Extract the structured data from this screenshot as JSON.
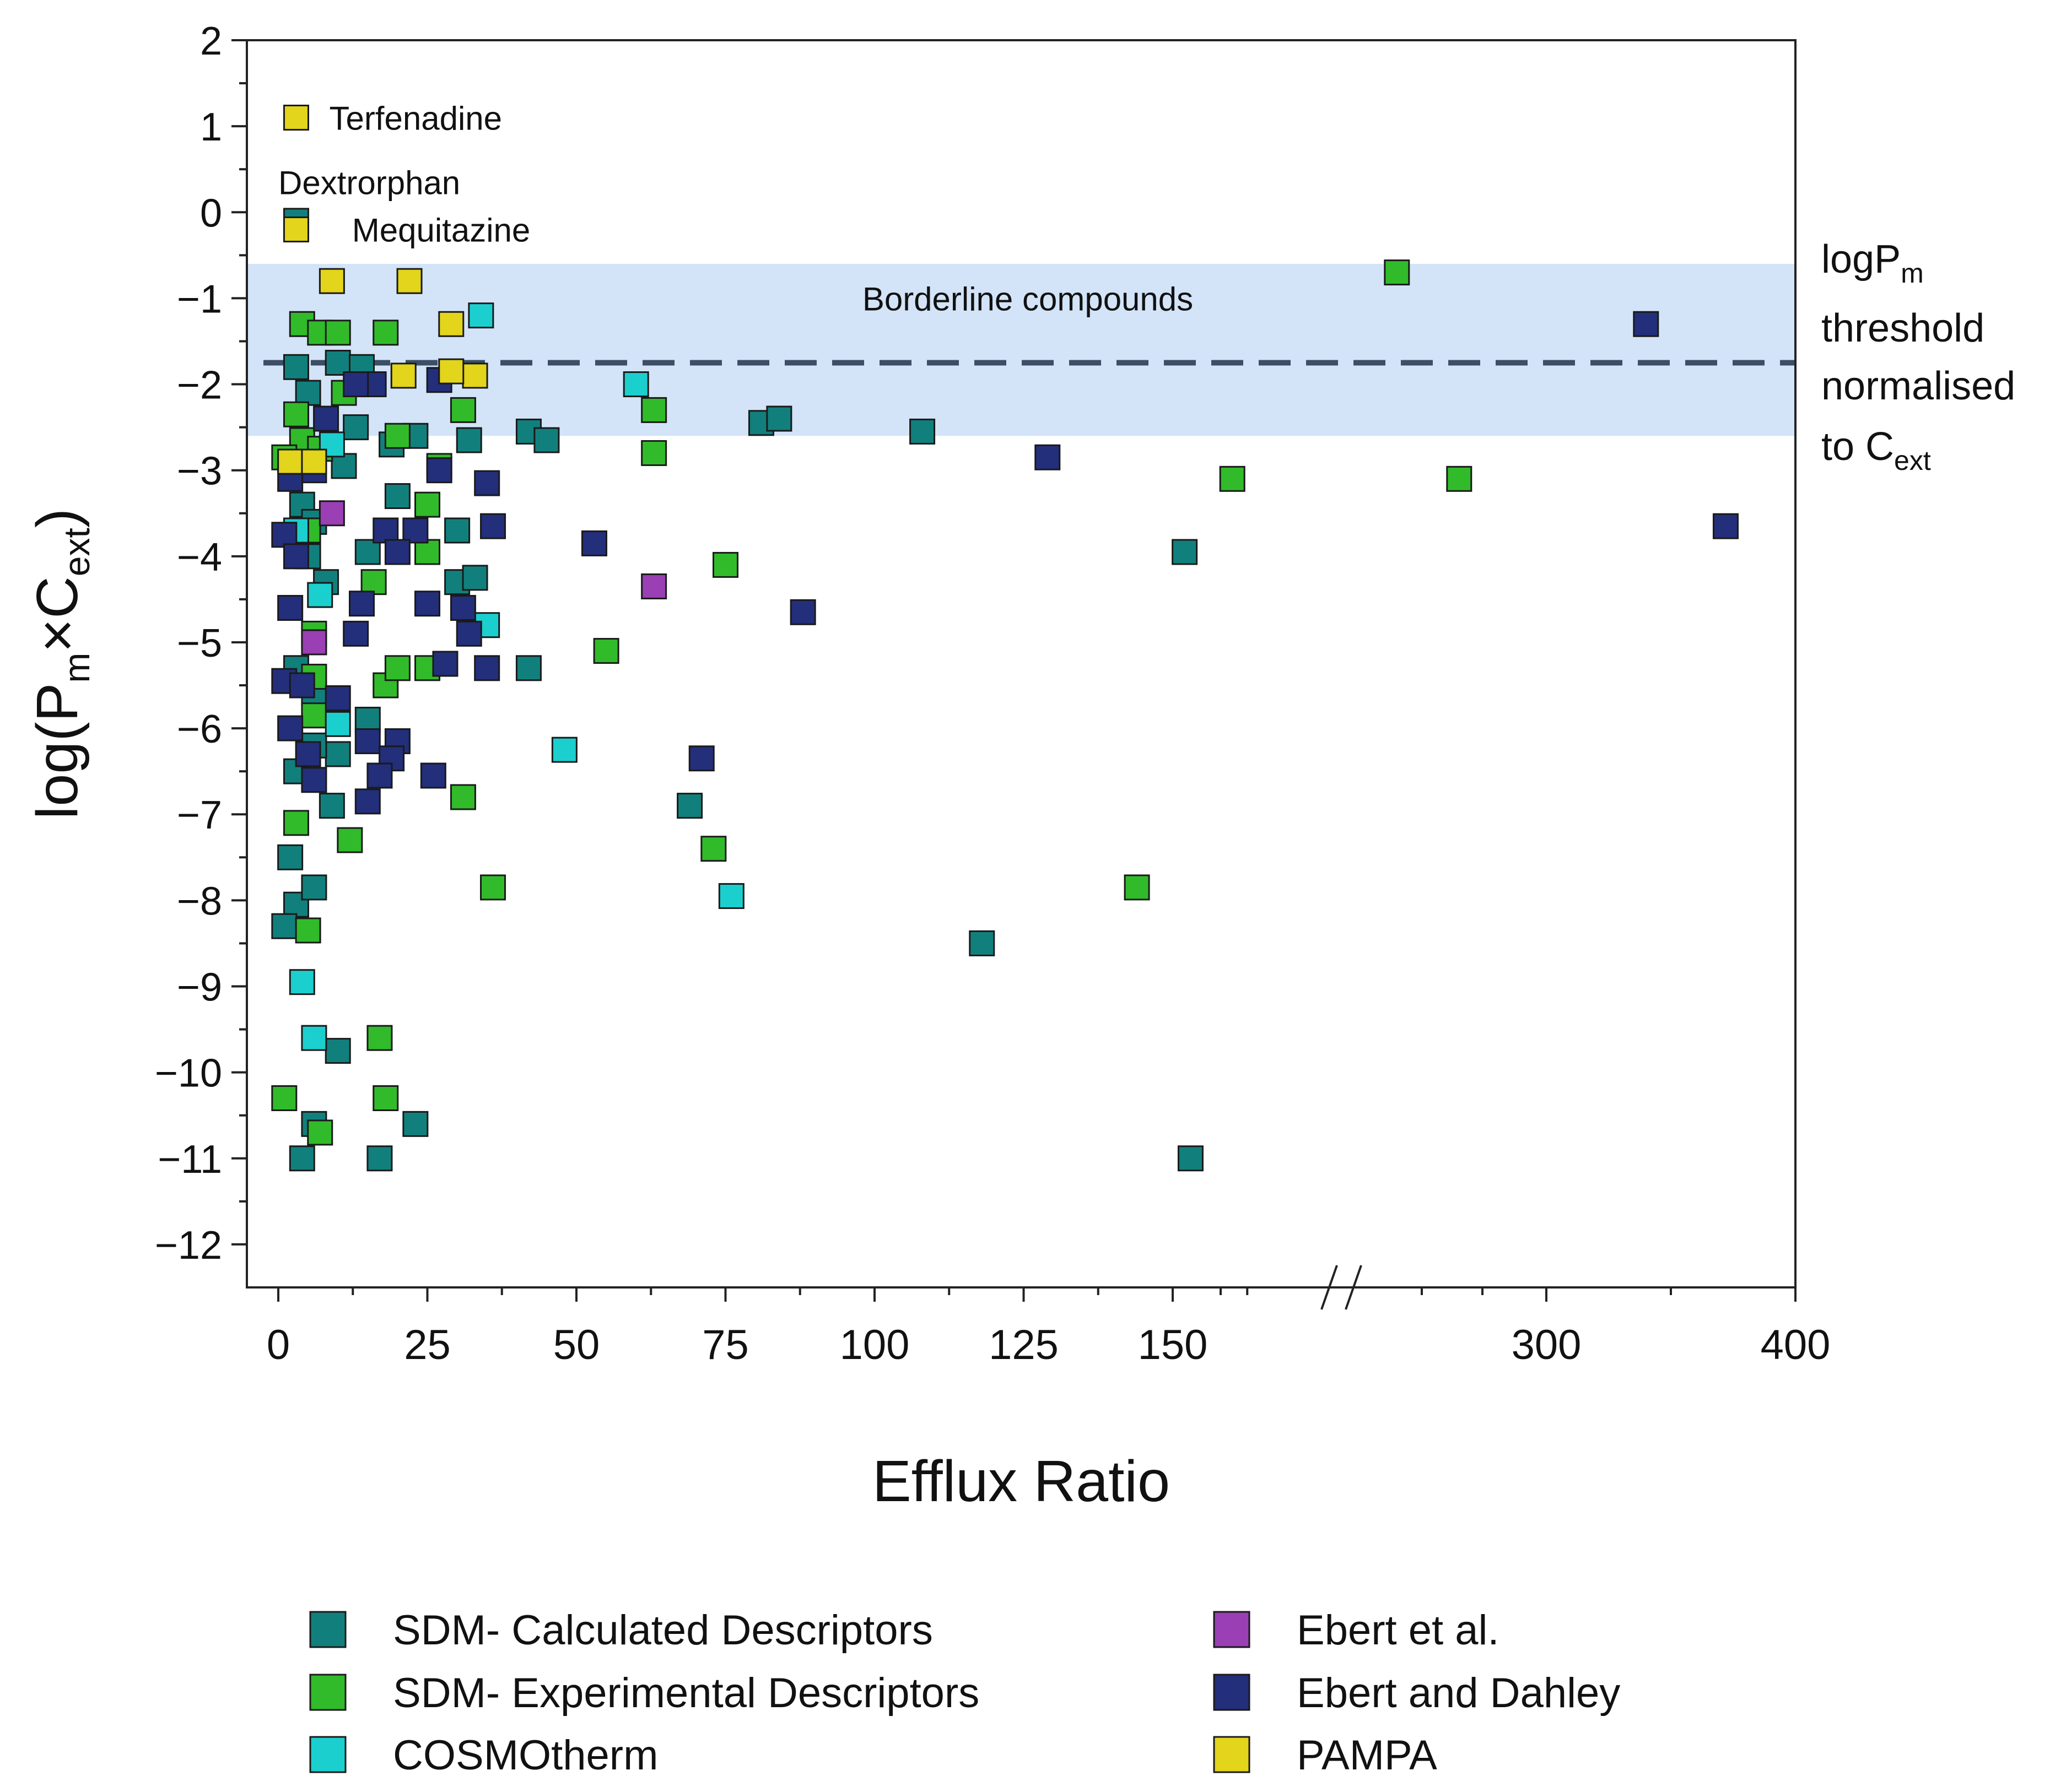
{
  "chart_data": {
    "type": "scatter",
    "title": "",
    "xlabel": "Efflux Ratio",
    "ylabel": "log(P_m × C_ext)",
    "ylabel_parts": {
      "pre": "log(P",
      "sub1": "m",
      "mid": "×C",
      "sub2": "ext",
      "post": ")"
    },
    "xlim": [
      -5,
      400
    ],
    "x_axis_break": {
      "from": 165,
      "to": 250
    },
    "ylim": [
      -12.5,
      2
    ],
    "x_ticks": [
      0,
      25,
      50,
      75,
      100,
      125,
      150,
      300,
      400
    ],
    "y_ticks": [
      2,
      1,
      0,
      -1,
      -2,
      -3,
      -4,
      -5,
      -6,
      -7,
      -8,
      -9,
      -10,
      -11,
      -12
    ],
    "y_tick_labels": [
      "2",
      "1",
      "0",
      "−1",
      "−2",
      "−3",
      "−4",
      "−5",
      "−6",
      "−7",
      "−8",
      "−9",
      "−10",
      "−11",
      "−12"
    ],
    "threshold_line": {
      "y": -1.75,
      "style": "dashed",
      "color": "#3d4f66"
    },
    "borderline_band": {
      "y_range": [
        -2.6,
        -0.6
      ],
      "color": "#d3e4f8",
      "label": "Borderline compounds"
    },
    "threshold_label": {
      "line1_pre": "logP",
      "line1_sub": "m",
      "line2": "threshold",
      "line3": "normalised",
      "line4_pre": "to C",
      "line4_sub": "ext"
    },
    "annotations": [
      {
        "text": "Terfenadine",
        "x": 3,
        "y": 1.1
      },
      {
        "text": "Dextrorphan",
        "x": 0,
        "y": 0.35
      },
      {
        "text": "Mequitazine",
        "x": 7,
        "y": -0.2
      }
    ],
    "legend": {
      "placement": "bottom",
      "columns": 2
    },
    "series": [
      {
        "name": "SDM- Calculated Descriptors",
        "color": "#11807d",
        "points": [
          [
            3,
            -0.1
          ],
          [
            3,
            -1.8
          ],
          [
            10,
            -1.75
          ],
          [
            14,
            -1.8
          ],
          [
            5,
            -2.1
          ],
          [
            13,
            -2.5
          ],
          [
            19,
            -2.7
          ],
          [
            23,
            -2.6
          ],
          [
            32,
            -2.65
          ],
          [
            42,
            -2.55
          ],
          [
            45,
            -2.65
          ],
          [
            81,
            -2.45
          ],
          [
            84,
            -2.4
          ],
          [
            108,
            -2.55
          ],
          [
            4,
            -3.4
          ],
          [
            11,
            -2.95
          ],
          [
            15,
            -3.95
          ],
          [
            20,
            -3.3
          ],
          [
            30,
            -3.7
          ],
          [
            30,
            -4.3
          ],
          [
            33,
            -4.25
          ],
          [
            5,
            -4.0
          ],
          [
            6,
            -3.6
          ],
          [
            8,
            -4.3
          ],
          [
            3,
            -5.3
          ],
          [
            6,
            -5.6
          ],
          [
            10,
            -6.3
          ],
          [
            15,
            -5.9
          ],
          [
            3,
            -6.5
          ],
          [
            6,
            -6.2
          ],
          [
            9,
            -6.9
          ],
          [
            2,
            -7.5
          ],
          [
            3,
            -8.05
          ],
          [
            6,
            -7.85
          ],
          [
            1,
            -8.3
          ],
          [
            10,
            -9.75
          ],
          [
            6,
            -10.6
          ],
          [
            4,
            -11.0
          ],
          [
            17,
            -11.0
          ],
          [
            23,
            -10.6
          ],
          [
            42,
            -5.3
          ],
          [
            69,
            -6.9
          ],
          [
            118,
            -8.5
          ],
          [
            152,
            -3.95
          ],
          [
            153,
            -11.0
          ]
        ]
      },
      {
        "name": "SDM- Experimental Descriptors",
        "color": "#31bb2a",
        "points": [
          [
            4,
            -1.3
          ],
          [
            7,
            -1.4
          ],
          [
            10,
            -1.4
          ],
          [
            18,
            -1.4
          ],
          [
            3,
            -2.35
          ],
          [
            4,
            -2.65
          ],
          [
            1,
            -2.85
          ],
          [
            7,
            -2.75
          ],
          [
            11,
            -2.1
          ],
          [
            20,
            -2.6
          ],
          [
            27,
            -2.95
          ],
          [
            25,
            -3.4
          ],
          [
            31,
            -2.3
          ],
          [
            63,
            -2.3
          ],
          [
            63,
            -2.8
          ],
          [
            5,
            -3.7
          ],
          [
            16,
            -4.3
          ],
          [
            25,
            -3.95
          ],
          [
            6,
            -4.9
          ],
          [
            6,
            -5.4
          ],
          [
            18,
            -5.5
          ],
          [
            20,
            -5.3
          ],
          [
            25,
            -5.3
          ],
          [
            6,
            -5.85
          ],
          [
            3,
            -7.1
          ],
          [
            12,
            -7.3
          ],
          [
            31,
            -6.8
          ],
          [
            36,
            -7.85
          ],
          [
            5,
            -8.35
          ],
          [
            17,
            -9.6
          ],
          [
            1,
            -10.3
          ],
          [
            18,
            -10.3
          ],
          [
            7,
            -10.7
          ],
          [
            55,
            -5.1
          ],
          [
            75,
            -4.1
          ],
          [
            73,
            -7.4
          ],
          [
            144,
            -7.85
          ],
          [
            160,
            -3.1
          ],
          [
            240,
            -0.7
          ],
          [
            265,
            -3.1
          ]
        ]
      },
      {
        "name": "COSMOtherm",
        "color": "#1ccfcf",
        "points": [
          [
            34,
            -1.2
          ],
          [
            60,
            -2.0
          ],
          [
            9,
            -2.7
          ],
          [
            3,
            -3.7
          ],
          [
            7,
            -4.45
          ],
          [
            35,
            -4.8
          ],
          [
            10,
            -5.95
          ],
          [
            48,
            -6.25
          ],
          [
            4,
            -8.95
          ],
          [
            6,
            -9.6
          ],
          [
            76,
            -7.95
          ]
        ]
      },
      {
        "name": "Ebert et al.",
        "color": "#9a3fb4",
        "points": [
          [
            63,
            -4.35
          ],
          [
            9,
            -3.5
          ],
          [
            6,
            -5.0
          ]
        ]
      },
      {
        "name": "Ebert and Dahley",
        "color": "#232f7b",
        "points": [
          [
            16,
            -2.0
          ],
          [
            27,
            -1.95
          ],
          [
            8,
            -2.4
          ],
          [
            13,
            -2.0
          ],
          [
            6,
            -3.0
          ],
          [
            2,
            -3.1
          ],
          [
            27,
            -3.0
          ],
          [
            35,
            -3.15
          ],
          [
            36,
            -3.65
          ],
          [
            18,
            -3.7
          ],
          [
            23,
            -3.7
          ],
          [
            20,
            -3.95
          ],
          [
            1,
            -3.75
          ],
          [
            3,
            -4.0
          ],
          [
            2,
            -4.6
          ],
          [
            14,
            -4.55
          ],
          [
            25,
            -4.55
          ],
          [
            31,
            -4.6
          ],
          [
            32,
            -4.9
          ],
          [
            13,
            -4.9
          ],
          [
            28,
            -5.25
          ],
          [
            35,
            -5.3
          ],
          [
            1,
            -5.45
          ],
          [
            4,
            -5.5
          ],
          [
            10,
            -5.65
          ],
          [
            2,
            -6.0
          ],
          [
            5,
            -6.3
          ],
          [
            15,
            -6.15
          ],
          [
            20,
            -6.15
          ],
          [
            19,
            -6.35
          ],
          [
            17,
            -6.55
          ],
          [
            6,
            -6.6
          ],
          [
            15,
            -6.85
          ],
          [
            26,
            -6.55
          ],
          [
            53,
            -3.85
          ],
          [
            71,
            -6.35
          ],
          [
            88,
            -4.65
          ],
          [
            129,
            -2.85
          ],
          [
            340,
            -1.3
          ],
          [
            372,
            -3.65
          ]
        ]
      },
      {
        "name": "PAMPA",
        "color": "#e3d41c",
        "points": [
          [
            3,
            1.1
          ],
          [
            3,
            -0.2
          ],
          [
            9,
            -0.8
          ],
          [
            22,
            -0.8
          ],
          [
            29,
            -1.3
          ],
          [
            21,
            -1.9
          ],
          [
            33,
            -1.9
          ],
          [
            29,
            -1.85
          ],
          [
            2,
            -2.9
          ],
          [
            6,
            -2.9
          ]
        ]
      }
    ]
  }
}
